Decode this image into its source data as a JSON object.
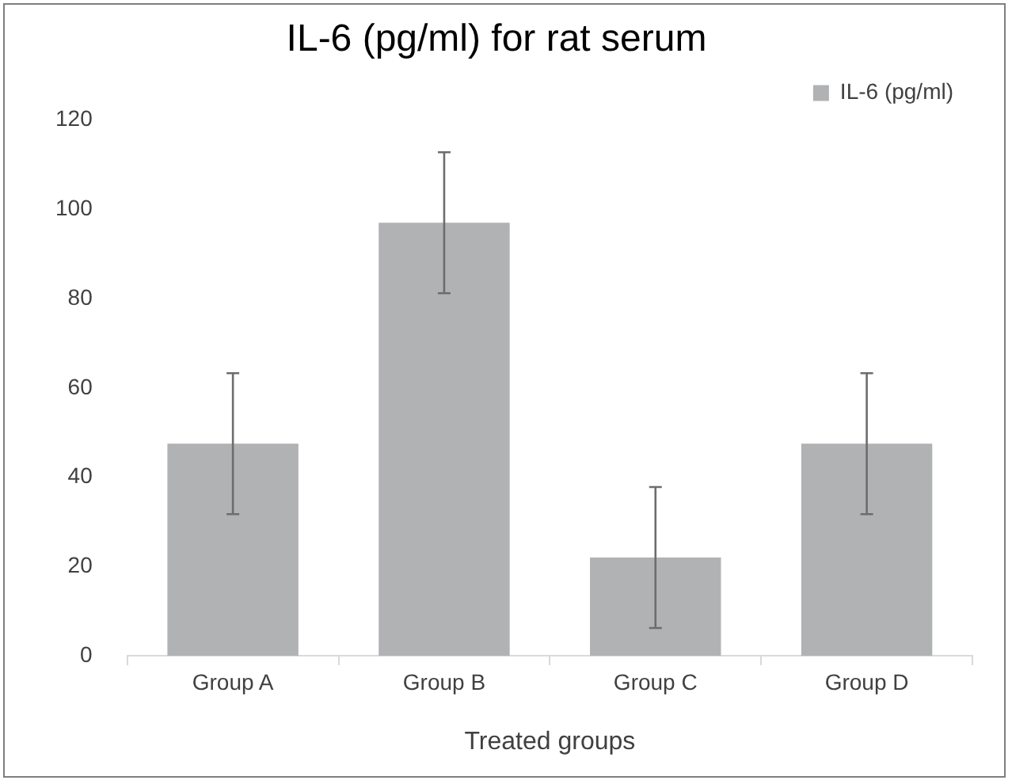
{
  "chart_data": {
    "type": "bar",
    "title": "IL-6 (pg/ml) for rat serum",
    "xlabel": "Treated groups",
    "categories": [
      "Group A",
      "Group B",
      "Group C",
      "Group D"
    ],
    "series": [
      {
        "name": "IL-6 (pg/ml)",
        "color": "#b1b2b4",
        "values": [
          47.5,
          97,
          22,
          47.5
        ],
        "errors": [
          15.8,
          15.8,
          15.8,
          15.8
        ]
      }
    ],
    "ylim": [
      0,
      120
    ],
    "yticks": [
      0,
      20,
      40,
      60,
      80,
      100,
      120
    ],
    "grid": false,
    "legend": "top right"
  }
}
